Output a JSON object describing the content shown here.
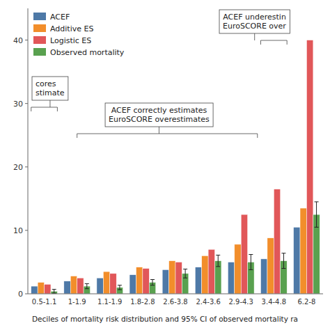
{
  "chart_data": {
    "type": "bar",
    "xlabel": "Deciles of mortality risk distribution and 95% CI of observed mortality ra",
    "categories": [
      "0.5-1.1",
      "1-1.9",
      "1.1-1.9",
      "1.8-2.8",
      "2.6-3.8",
      "2.4-3.6",
      "2.9-4.3",
      "3.4-4.8",
      "6.2-8"
    ],
    "series": [
      {
        "name": "ACEF",
        "values": [
          1.2,
          2.0,
          2.5,
          3.0,
          3.8,
          4.2,
          5.0,
          5.5,
          10.5
        ]
      },
      {
        "name": "Additive ES",
        "values": [
          1.8,
          2.8,
          3.5,
          4.2,
          5.2,
          6.0,
          7.8,
          8.8,
          13.5
        ]
      },
      {
        "name": "Logistic ES",
        "values": [
          1.5,
          2.5,
          3.2,
          4.0,
          5.0,
          7.0,
          12.5,
          16.5,
          40.0
        ]
      },
      {
        "name": "Observed mortality",
        "values": [
          0.4,
          1.2,
          1.0,
          1.8,
          3.2,
          5.2,
          5.0,
          5.2,
          12.5
        ],
        "errors": [
          0.3,
          0.4,
          0.35,
          0.45,
          0.7,
          0.9,
          1.2,
          1.2,
          2.0
        ]
      }
    ],
    "ylim": [
      0,
      45
    ],
    "yticks": [
      0,
      10,
      20,
      30,
      40
    ],
    "grid": false,
    "legend": "upper left",
    "annotations": [
      "ACEF correctly estimates\nEuroSCORE overestimates",
      "ACEF underestin\nEuroSCORE over",
      "cores\nstimate"
    ]
  }
}
